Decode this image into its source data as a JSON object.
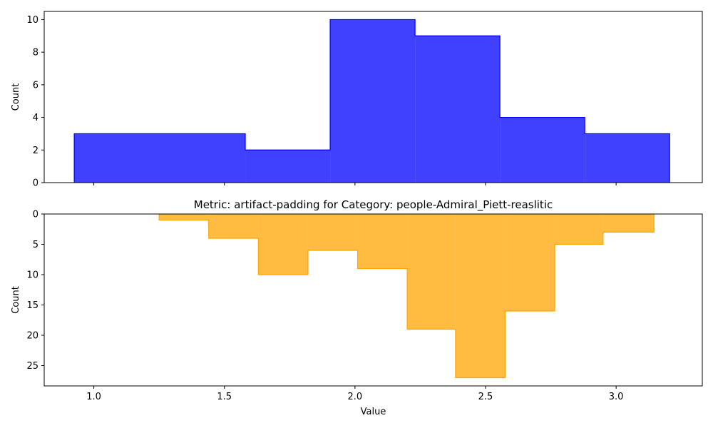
{
  "chart_data": [
    {
      "type": "histogram",
      "subplot": "top",
      "title": "",
      "xlabel": "",
      "ylabel": "Count",
      "bin_edges": [
        0.925,
        1.58,
        1.905,
        2.23,
        2.555,
        2.88,
        3.205
      ],
      "values": [
        3,
        2,
        10,
        9,
        4,
        3
      ],
      "color": "#0000ff",
      "fill_alpha": 0.75,
      "ylim": [
        0,
        10.5
      ],
      "yticks": [
        0,
        2,
        4,
        6,
        8,
        10
      ],
      "xlim": [
        0.81,
        3.33
      ],
      "xticks": [
        1.0,
        1.5,
        2.0,
        2.5,
        3.0
      ],
      "x_tick_labels_shown": false,
      "grid": false,
      "legend": "none"
    },
    {
      "type": "histogram",
      "subplot": "bottom",
      "title": "Metric: artifact-padding for Category: people-Admiral_Piett-reaslitic",
      "xlabel": "Value",
      "ylabel": "Count",
      "bin_edges": [
        1.25,
        1.44,
        1.63,
        1.82,
        2.01,
        2.2,
        2.385,
        2.575,
        2.765,
        2.95,
        3.145
      ],
      "values": [
        1,
        4,
        10,
        6,
        9,
        19,
        27,
        16,
        5,
        3
      ],
      "color": "#ffa500",
      "fill_alpha": 0.75,
      "y_inverted": true,
      "ylim": [
        0,
        28.35
      ],
      "yticks": [
        0,
        5,
        10,
        15,
        20,
        25
      ],
      "xlim": [
        0.81,
        3.33
      ],
      "xticks": [
        1.0,
        1.5,
        2.0,
        2.5,
        3.0
      ],
      "x_tick_labels_shown": true,
      "grid": false,
      "legend": "none"
    }
  ]
}
